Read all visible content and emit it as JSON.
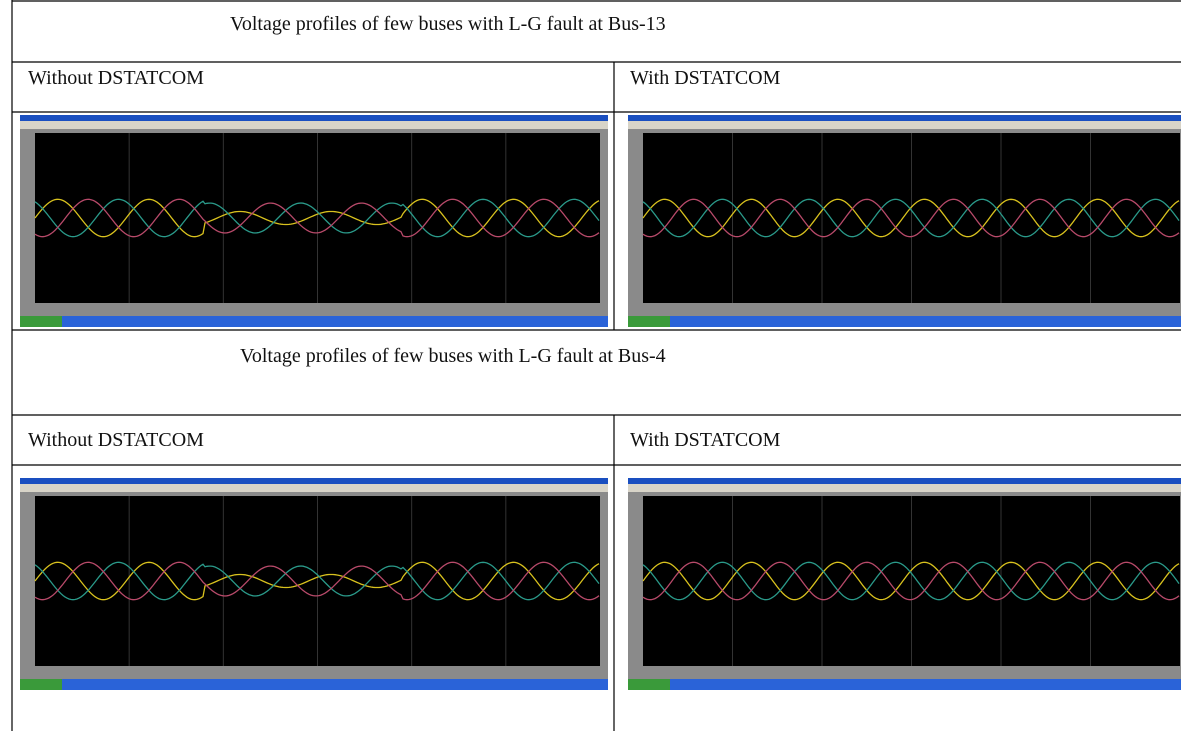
{
  "sections": [
    {
      "title": "Voltage profiles of few buses with L-G fault at Bus-13",
      "columns": [
        "Without DSTATCOM",
        "With DSTATCOM"
      ]
    },
    {
      "title": "Voltage profiles of few buses with L-G fault at Bus-4",
      "columns": [
        "Without DSTATCOM",
        "With DSTATCOM"
      ]
    }
  ]
}
